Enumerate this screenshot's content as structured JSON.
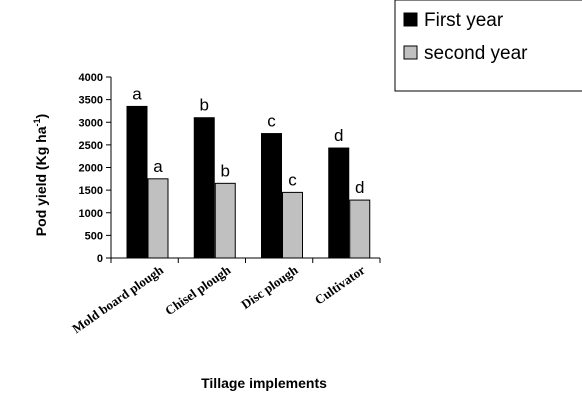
{
  "chart_data": {
    "type": "bar",
    "categories": [
      "Mold board plough",
      "Chisel plough",
      "Disc plough",
      "Cultivator"
    ],
    "series": [
      {
        "name": "First year",
        "values": [
          3350,
          3100,
          2750,
          2430
        ],
        "labels": [
          "a",
          "b",
          "c",
          "d"
        ],
        "color": "#000000"
      },
      {
        "name": "second year",
        "values": [
          1750,
          1650,
          1450,
          1280
        ],
        "labels": [
          "a",
          "b",
          "c",
          "d"
        ],
        "color": "#c0c0c0"
      }
    ],
    "xlabel": "Tillage implements",
    "ylabel_main": "Pod yield (Kg ha",
    "ylabel_sup": "-1",
    "ylabel_close": ")",
    "yticks": [
      0,
      500,
      1000,
      1500,
      2000,
      2500,
      3000,
      3500,
      4000
    ],
    "ylim": [
      0,
      4000
    ],
    "grid": false,
    "legend_position": "top-right"
  }
}
